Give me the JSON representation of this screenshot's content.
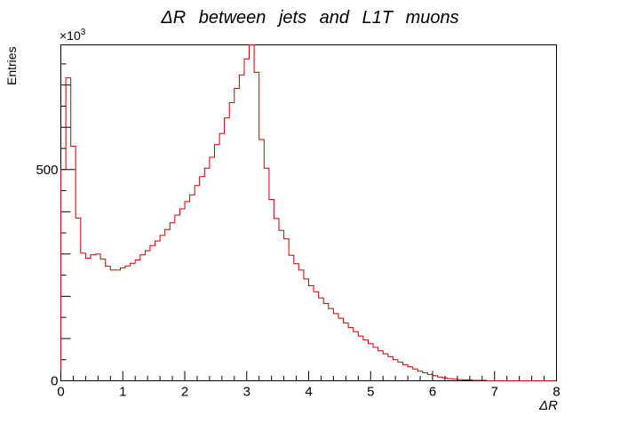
{
  "chart_data": {
    "type": "histogram",
    "title": "ΔR   between   jets   and   L1T   muons",
    "xlabel": "ΔR",
    "ylabel": "Entries",
    "y_multiplier_label": "×10",
    "y_multiplier_exponent": "3",
    "xlim": [
      0,
      8
    ],
    "ylim": [
      0,
      795
    ],
    "x_ticks": [
      0,
      1,
      2,
      3,
      4,
      5,
      6,
      7,
      8
    ],
    "x_tick_labels": [
      "0",
      "1",
      "2",
      "3",
      "4",
      "5",
      "6",
      "7",
      "8"
    ],
    "y_ticks": [
      0,
      500
    ],
    "y_tick_labels": [
      "0",
      "500"
    ],
    "bin_width": 0.08,
    "series": [
      {
        "color": "#cc0000",
        "values": [
          500,
          717,
          555,
          385,
          302,
          290,
          298,
          300,
          288,
          271,
          262,
          262,
          267,
          272,
          278,
          286,
          298,
          308,
          320,
          331,
          344,
          358,
          374,
          392,
          407,
          424,
          440,
          462,
          483,
          503,
          529,
          559,
          585,
          622,
          658,
          692,
          724,
          762,
          795,
          730,
          571,
          503,
          429,
          384,
          356,
          336,
          297,
          277,
          262,
          241,
          225,
          211,
          196,
          183,
          171,
          159,
          148,
          137,
          126,
          116,
          106,
          97,
          88,
          79,
          71,
          64,
          57,
          50,
          44,
          38,
          33,
          28,
          23,
          19,
          15,
          12,
          9,
          7,
          5,
          4,
          3,
          2,
          2,
          1,
          1,
          1,
          0,
          0,
          0,
          0,
          0,
          0,
          0,
          0,
          0,
          0,
          0,
          0,
          0,
          0
        ]
      }
    ]
  }
}
